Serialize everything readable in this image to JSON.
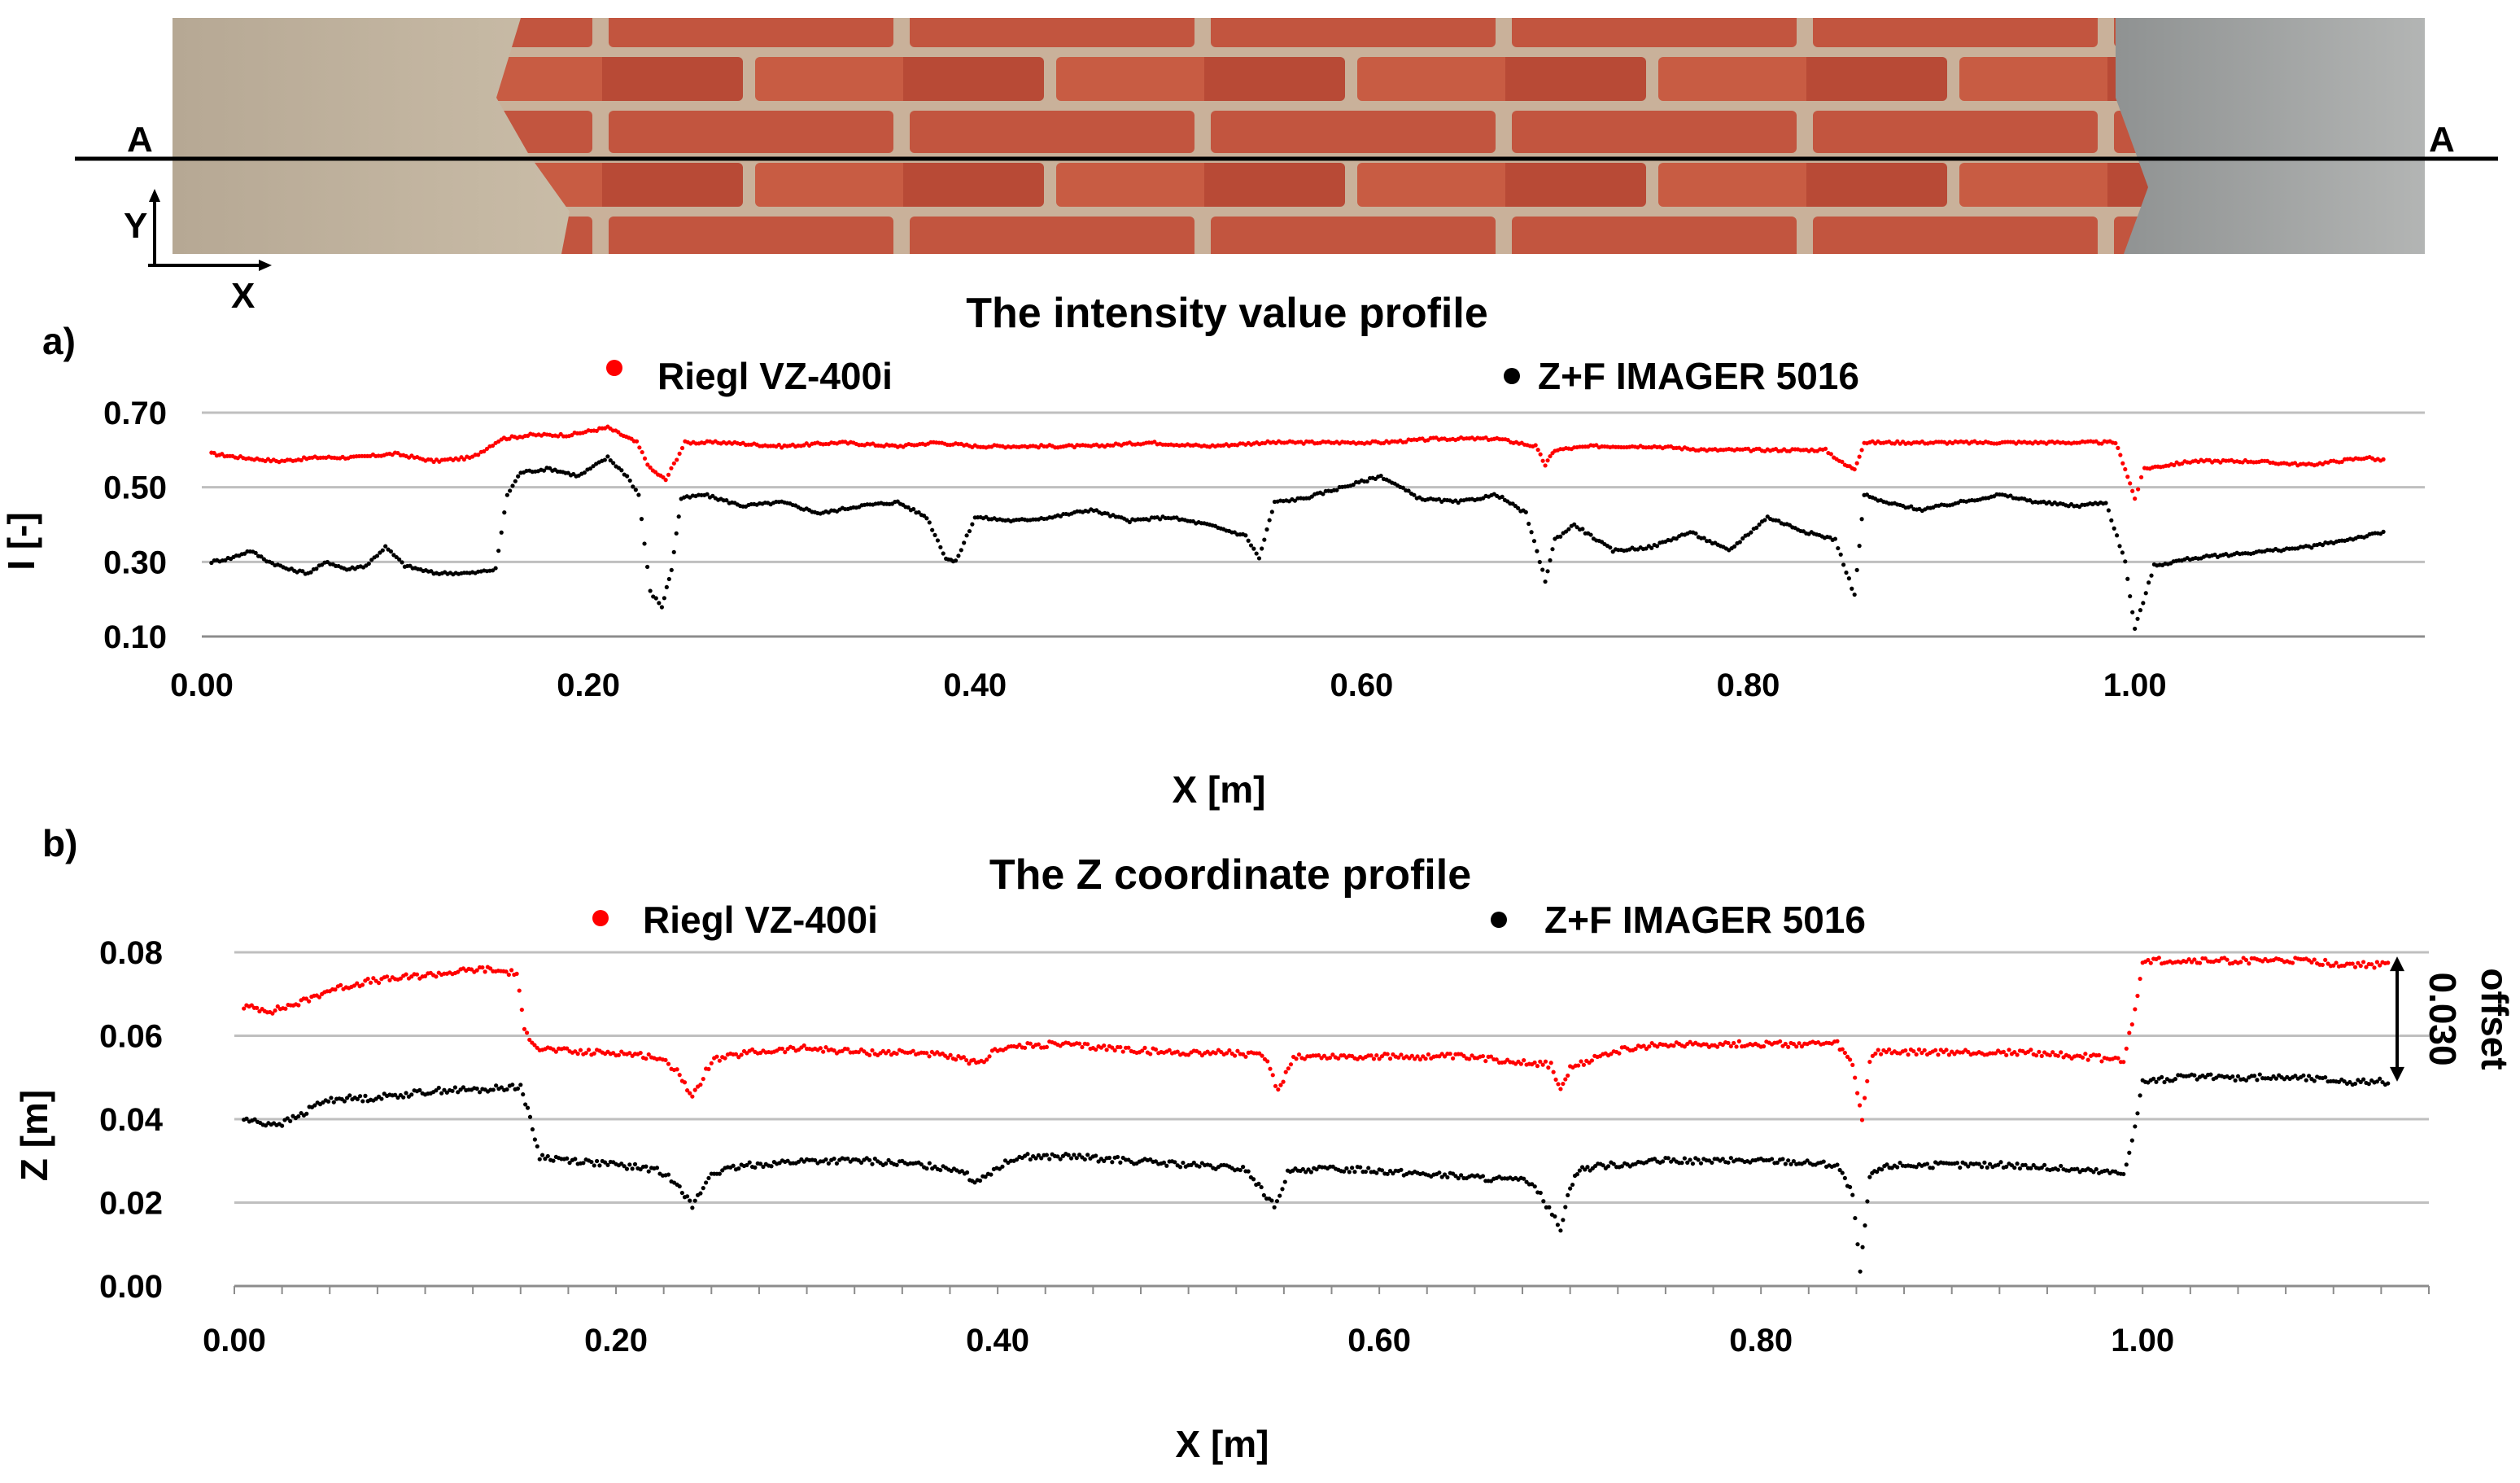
{
  "section_line": {
    "left_label": "A",
    "right_label": "A"
  },
  "image_axes": {
    "y_label": "Y",
    "x_label": "X"
  },
  "colors": {
    "riegl": "#ff0000",
    "zf": "#000000",
    "grid": "#bfbfbf"
  },
  "chart_data": [
    {
      "type": "scatter",
      "panel_label": "a)",
      "title": "The intensity value profile",
      "xlabel": "X [m]",
      "ylabel": "I [-]",
      "xlim": [
        0.0,
        1.15
      ],
      "ylim": [
        0.1,
        0.7
      ],
      "xticks": [
        0.0,
        0.2,
        0.4,
        0.6,
        0.8,
        1.0
      ],
      "xtick_labels": [
        "0.00",
        "0.20",
        "0.40",
        "0.60",
        "0.80",
        "1.00"
      ],
      "yticks": [
        0.1,
        0.3,
        0.5,
        0.7
      ],
      "ytick_labels": [
        "0.10",
        "0.30",
        "0.50",
        "0.70"
      ],
      "grid": true,
      "series": [
        {
          "name": "Riegl VZ-400i",
          "color": "#ff0000",
          "x": [
            0.005,
            0.02,
            0.04,
            0.06,
            0.08,
            0.1,
            0.12,
            0.14,
            0.155,
            0.17,
            0.19,
            0.21,
            0.225,
            0.232,
            0.24,
            0.25,
            0.27,
            0.3,
            0.33,
            0.36,
            0.38,
            0.4,
            0.43,
            0.46,
            0.49,
            0.52,
            0.55,
            0.58,
            0.61,
            0.64,
            0.67,
            0.69,
            0.695,
            0.7,
            0.72,
            0.75,
            0.78,
            0.81,
            0.84,
            0.85,
            0.855,
            0.86,
            0.88,
            0.91,
            0.94,
            0.97,
            0.99,
            0.995,
            1.0,
            1.005,
            1.03,
            1.06,
            1.09,
            1.12,
            1.13
          ],
          "y": [
            0.59,
            0.58,
            0.57,
            0.58,
            0.58,
            0.59,
            0.57,
            0.58,
            0.63,
            0.64,
            0.64,
            0.66,
            0.62,
            0.55,
            0.52,
            0.62,
            0.62,
            0.61,
            0.62,
            0.61,
            0.62,
            0.61,
            0.61,
            0.61,
            0.62,
            0.61,
            0.62,
            0.62,
            0.62,
            0.63,
            0.63,
            0.61,
            0.56,
            0.6,
            0.61,
            0.61,
            0.6,
            0.6,
            0.6,
            0.56,
            0.55,
            0.62,
            0.62,
            0.62,
            0.62,
            0.62,
            0.62,
            0.55,
            0.47,
            0.55,
            0.57,
            0.57,
            0.56,
            0.58,
            0.57
          ]
        },
        {
          "name": "Z+F IMAGER 5016",
          "color": "#000000",
          "x": [
            0.005,
            0.015,
            0.025,
            0.035,
            0.045,
            0.055,
            0.065,
            0.075,
            0.085,
            0.095,
            0.105,
            0.12,
            0.14,
            0.152,
            0.158,
            0.165,
            0.18,
            0.195,
            0.21,
            0.22,
            0.226,
            0.232,
            0.238,
            0.243,
            0.248,
            0.26,
            0.28,
            0.3,
            0.32,
            0.34,
            0.36,
            0.375,
            0.385,
            0.39,
            0.4,
            0.42,
            0.44,
            0.46,
            0.48,
            0.5,
            0.52,
            0.54,
            0.547,
            0.555,
            0.57,
            0.59,
            0.61,
            0.63,
            0.65,
            0.67,
            0.685,
            0.695,
            0.7,
            0.71,
            0.73,
            0.75,
            0.77,
            0.79,
            0.81,
            0.83,
            0.845,
            0.855,
            0.86,
            0.87,
            0.89,
            0.91,
            0.93,
            0.95,
            0.97,
            0.985,
            0.995,
            1.0,
            1.01,
            1.03,
            1.05,
            1.07,
            1.09,
            1.11,
            1.13
          ],
          "y": [
            0.3,
            0.31,
            0.33,
            0.3,
            0.28,
            0.27,
            0.3,
            0.28,
            0.29,
            0.34,
            0.29,
            0.27,
            0.27,
            0.28,
            0.48,
            0.54,
            0.55,
            0.53,
            0.58,
            0.53,
            0.48,
            0.22,
            0.18,
            0.28,
            0.47,
            0.48,
            0.45,
            0.46,
            0.43,
            0.45,
            0.46,
            0.42,
            0.31,
            0.3,
            0.42,
            0.41,
            0.42,
            0.44,
            0.41,
            0.42,
            0.4,
            0.37,
            0.31,
            0.46,
            0.47,
            0.5,
            0.53,
            0.47,
            0.46,
            0.48,
            0.43,
            0.25,
            0.36,
            0.4,
            0.33,
            0.34,
            0.38,
            0.33,
            0.42,
            0.38,
            0.36,
            0.21,
            0.48,
            0.46,
            0.44,
            0.46,
            0.48,
            0.46,
            0.45,
            0.46,
            0.3,
            0.12,
            0.29,
            0.31,
            0.32,
            0.33,
            0.34,
            0.36,
            0.38
          ]
        }
      ]
    },
    {
      "type": "scatter",
      "panel_label": "b)",
      "title": "The Z coordinate profile",
      "xlabel": "X [m]",
      "ylabel": "Z [m]",
      "xlim": [
        0.0,
        1.15
      ],
      "ylim": [
        0.0,
        0.08
      ],
      "xticks": [
        0.0,
        0.2,
        0.4,
        0.6,
        0.8,
        1.0
      ],
      "xtick_labels": [
        "0.00",
        "0.20",
        "0.40",
        "0.60",
        "0.80",
        "1.00"
      ],
      "yticks": [
        0.0,
        0.02,
        0.04,
        0.06,
        0.08
      ],
      "ytick_labels": [
        "0.00",
        "0.02",
        "0.04",
        "0.06",
        "0.08"
      ],
      "grid": true,
      "annotation": {
        "text": "offset 0.030",
        "label_1": "offset",
        "label_2": "0.030",
        "from_y": 0.079,
        "to_y": 0.049
      },
      "series": [
        {
          "name": "Riegl VZ-400i",
          "color": "#ff0000",
          "x": [
            0.005,
            0.02,
            0.035,
            0.05,
            0.07,
            0.09,
            0.11,
            0.13,
            0.148,
            0.152,
            0.16,
            0.18,
            0.2,
            0.22,
            0.232,
            0.24,
            0.25,
            0.27,
            0.3,
            0.33,
            0.36,
            0.385,
            0.39,
            0.4,
            0.43,
            0.46,
            0.49,
            0.52,
            0.54,
            0.547,
            0.555,
            0.58,
            0.61,
            0.64,
            0.67,
            0.69,
            0.695,
            0.7,
            0.72,
            0.75,
            0.78,
            0.81,
            0.84,
            0.848,
            0.853,
            0.857,
            0.86,
            0.88,
            0.91,
            0.94,
            0.97,
            0.99,
            0.996,
            1.0,
            1.02,
            1.05,
            1.08,
            1.11,
            1.13
          ],
          "y": [
            0.067,
            0.066,
            0.068,
            0.071,
            0.073,
            0.074,
            0.075,
            0.076,
            0.075,
            0.061,
            0.057,
            0.056,
            0.056,
            0.055,
            0.052,
            0.045,
            0.054,
            0.056,
            0.057,
            0.056,
            0.056,
            0.054,
            0.053,
            0.057,
            0.058,
            0.057,
            0.056,
            0.056,
            0.055,
            0.047,
            0.055,
            0.055,
            0.055,
            0.055,
            0.054,
            0.053,
            0.047,
            0.052,
            0.056,
            0.058,
            0.058,
            0.058,
            0.058,
            0.053,
            0.04,
            0.054,
            0.056,
            0.056,
            0.056,
            0.056,
            0.055,
            0.054,
            0.066,
            0.078,
            0.078,
            0.078,
            0.078,
            0.077,
            0.077
          ]
        },
        {
          "name": "Z+F IMAGER 5016",
          "color": "#000000",
          "x": [
            0.005,
            0.015,
            0.025,
            0.035,
            0.045,
            0.055,
            0.07,
            0.09,
            0.11,
            0.13,
            0.15,
            0.155,
            0.16,
            0.18,
            0.2,
            0.22,
            0.232,
            0.24,
            0.25,
            0.27,
            0.3,
            0.33,
            0.36,
            0.38,
            0.388,
            0.395,
            0.41,
            0.44,
            0.47,
            0.5,
            0.53,
            0.545,
            0.552,
            0.56,
            0.59,
            0.62,
            0.65,
            0.68,
            0.695,
            0.7,
            0.705,
            0.72,
            0.75,
            0.78,
            0.81,
            0.84,
            0.848,
            0.852,
            0.857,
            0.862,
            0.87,
            0.9,
            0.93,
            0.96,
            0.99,
            0.996,
            1.0,
            1.02,
            1.05,
            1.08,
            1.11,
            1.13
          ],
          "y": [
            0.04,
            0.039,
            0.039,
            0.041,
            0.044,
            0.045,
            0.045,
            0.046,
            0.047,
            0.047,
            0.048,
            0.04,
            0.031,
            0.03,
            0.029,
            0.028,
            0.025,
            0.019,
            0.027,
            0.029,
            0.03,
            0.03,
            0.029,
            0.028,
            0.025,
            0.027,
            0.031,
            0.031,
            0.03,
            0.029,
            0.028,
            0.019,
            0.027,
            0.028,
            0.028,
            0.027,
            0.026,
            0.025,
            0.014,
            0.024,
            0.028,
            0.029,
            0.03,
            0.03,
            0.03,
            0.029,
            0.022,
            0.003,
            0.026,
            0.028,
            0.029,
            0.029,
            0.029,
            0.028,
            0.027,
            0.038,
            0.049,
            0.05,
            0.05,
            0.05,
            0.049,
            0.049
          ]
        }
      ]
    }
  ]
}
